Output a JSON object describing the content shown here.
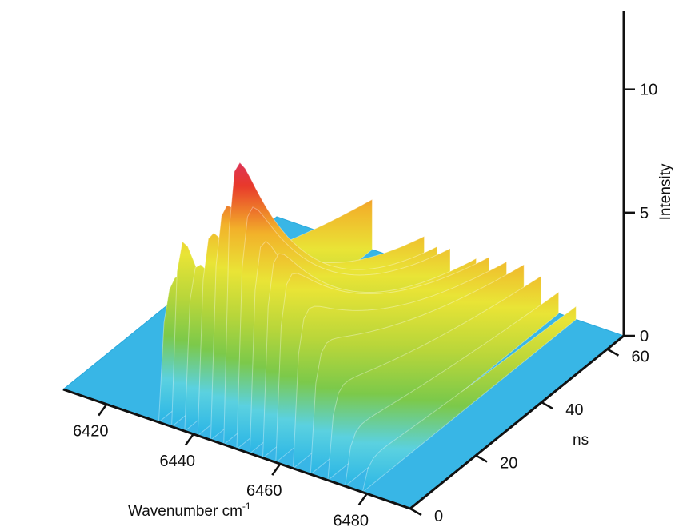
{
  "chart_data": {
    "type": "surface",
    "x_axis": {
      "label": "Wavenumber cm",
      "label_superscript": "-1",
      "ticks": [
        6420,
        6440,
        6460,
        6480
      ],
      "range": [
        6410,
        6490
      ]
    },
    "y_axis": {
      "label": "ns",
      "ticks": [
        0,
        20,
        40,
        60
      ],
      "range": [
        0,
        65
      ]
    },
    "z_axis": {
      "label": "Intensity",
      "ticks": [
        0,
        5,
        10
      ],
      "range": [
        0,
        14
      ]
    },
    "colormap": [
      "#2ab5e6",
      "#5bd1e0",
      "#7cc94a",
      "#b9d63a",
      "#e9e436",
      "#f2b12a",
      "#e8392b",
      "#d4307a",
      "#b02fa0"
    ],
    "series": [
      {
        "wavenumber": 6432,
        "peak_intensity": 6,
        "decay_ns": 60
      },
      {
        "wavenumber": 6435,
        "peak_intensity": 10.6,
        "decay_ns": 12
      },
      {
        "wavenumber": 6438,
        "peak_intensity": 8.5,
        "decay_ns": 18
      },
      {
        "wavenumber": 6441,
        "peak_intensity": 10,
        "decay_ns": 22
      },
      {
        "wavenumber": 6444,
        "peak_intensity": 11,
        "decay_ns": 30
      },
      {
        "wavenumber": 6447,
        "peak_intensity": 13.8,
        "decay_ns": 25
      },
      {
        "wavenumber": 6450,
        "peak_intensity": 11.5,
        "decay_ns": 28
      },
      {
        "wavenumber": 6453,
        "peak_intensity": 10.5,
        "decay_ns": 22
      },
      {
        "wavenumber": 6456,
        "peak_intensity": 9.5,
        "decay_ns": 30
      },
      {
        "wavenumber": 6459,
        "peak_intensity": 8.5,
        "decay_ns": 35
      },
      {
        "wavenumber": 6463,
        "peak_intensity": 7,
        "decay_ns": 40
      },
      {
        "wavenumber": 6467,
        "peak_intensity": 5.5,
        "decay_ns": 50
      },
      {
        "wavenumber": 6471,
        "peak_intensity": 3.8,
        "decay_ns": 60
      },
      {
        "wavenumber": 6475,
        "peak_intensity": 2.2,
        "decay_ns": 70
      },
      {
        "wavenumber": 6479,
        "peak_intensity": 1.2,
        "decay_ns": 80
      }
    ]
  }
}
